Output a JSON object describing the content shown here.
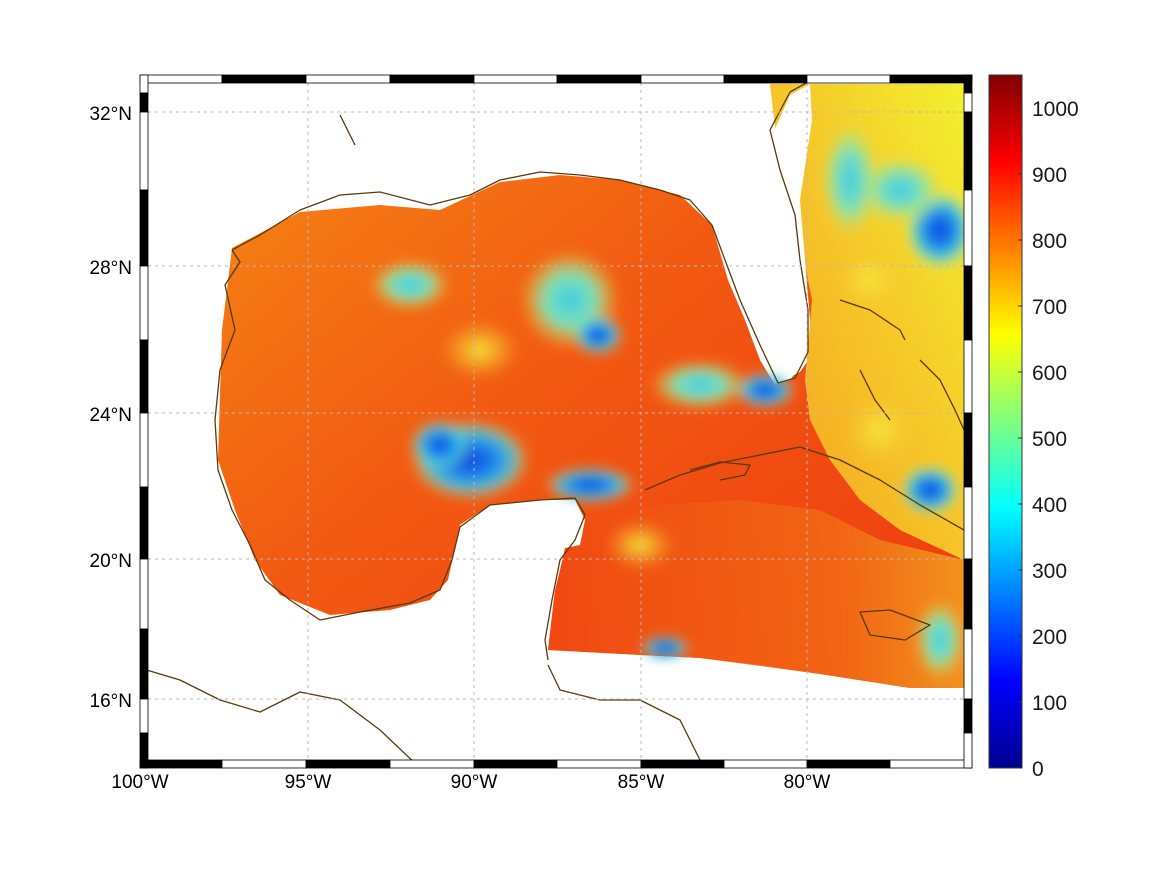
{
  "map": {
    "type": "heatmap",
    "projection": "lat-lon",
    "region": "Gulf of Mexico and Caribbean",
    "colormap": "jet",
    "xlim": [
      -100,
      -75
    ],
    "ylim": [
      14.2,
      33
    ],
    "grid": true,
    "lat_ticks": [
      {
        "value": 16,
        "label": "16°N"
      },
      {
        "value": 20,
        "label": "20°N"
      },
      {
        "value": 24,
        "label": "24°N"
      },
      {
        "value": 28,
        "label": "28°N"
      },
      {
        "value": 32,
        "label": "32°N"
      }
    ],
    "lon_ticks": [
      {
        "value": -100,
        "label": "100°W"
      },
      {
        "value": -95,
        "label": "95°W"
      },
      {
        "value": -90,
        "label": "90°W"
      },
      {
        "value": -85,
        "label": "85°W"
      },
      {
        "value": -80,
        "label": "80°W"
      }
    ],
    "colorbar": {
      "range": [
        0,
        1050
      ],
      "ticks": [
        "0",
        "100",
        "200",
        "300",
        "400",
        "500",
        "600",
        "700",
        "800",
        "900",
        "1000"
      ],
      "tick_values": [
        0,
        100,
        200,
        300,
        400,
        500,
        600,
        700,
        800,
        900,
        1000
      ],
      "placement": "right"
    },
    "low_value_patches": [
      {
        "lon": -88.7,
        "lat": 22.7,
        "value": 150
      },
      {
        "lon": -87.5,
        "lat": 22.1,
        "value": 330
      },
      {
        "lon": -86.7,
        "lat": 28.0,
        "value": 450
      },
      {
        "lon": -83.4,
        "lat": 24.6,
        "value": 400
      },
      {
        "lon": -81.6,
        "lat": 24.9,
        "value": 120
      },
      {
        "lon": -76.0,
        "lat": 21.5,
        "value": 230
      },
      {
        "lon": -76.5,
        "lat": 28.5,
        "value": 300
      },
      {
        "lon": -84.3,
        "lat": 17.2,
        "value": 200
      }
    ]
  }
}
